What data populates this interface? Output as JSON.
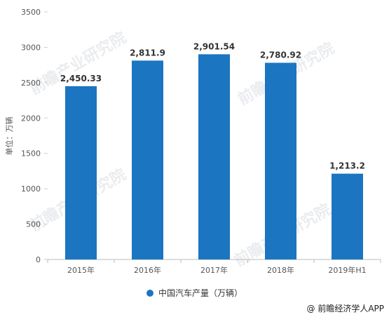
{
  "chart_data": {
    "type": "bar",
    "categories": [
      "2015年",
      "2016年",
      "2017年",
      "2018年",
      "2019年H1"
    ],
    "series": [
      {
        "name": "中国汽车产量（万辆）",
        "values": [
          2450.33,
          2811.9,
          2901.54,
          2780.92,
          1213.2
        ],
        "data_labels": [
          "2,450.33",
          "2,811.9",
          "2,901.54",
          "2,780.92",
          "1,213.2"
        ],
        "color": "#1B75C1"
      }
    ],
    "ylabel": "单位：万辆",
    "ylim": [
      0,
      3500
    ],
    "yticks": [
      0,
      500,
      1000,
      1500,
      2000,
      2500,
      3000,
      3500
    ],
    "grid": false,
    "legend_placement": "bottom-center"
  },
  "watermark_text": "前瞻产业研究院",
  "credit": "@ 前瞻经济学人APP"
}
